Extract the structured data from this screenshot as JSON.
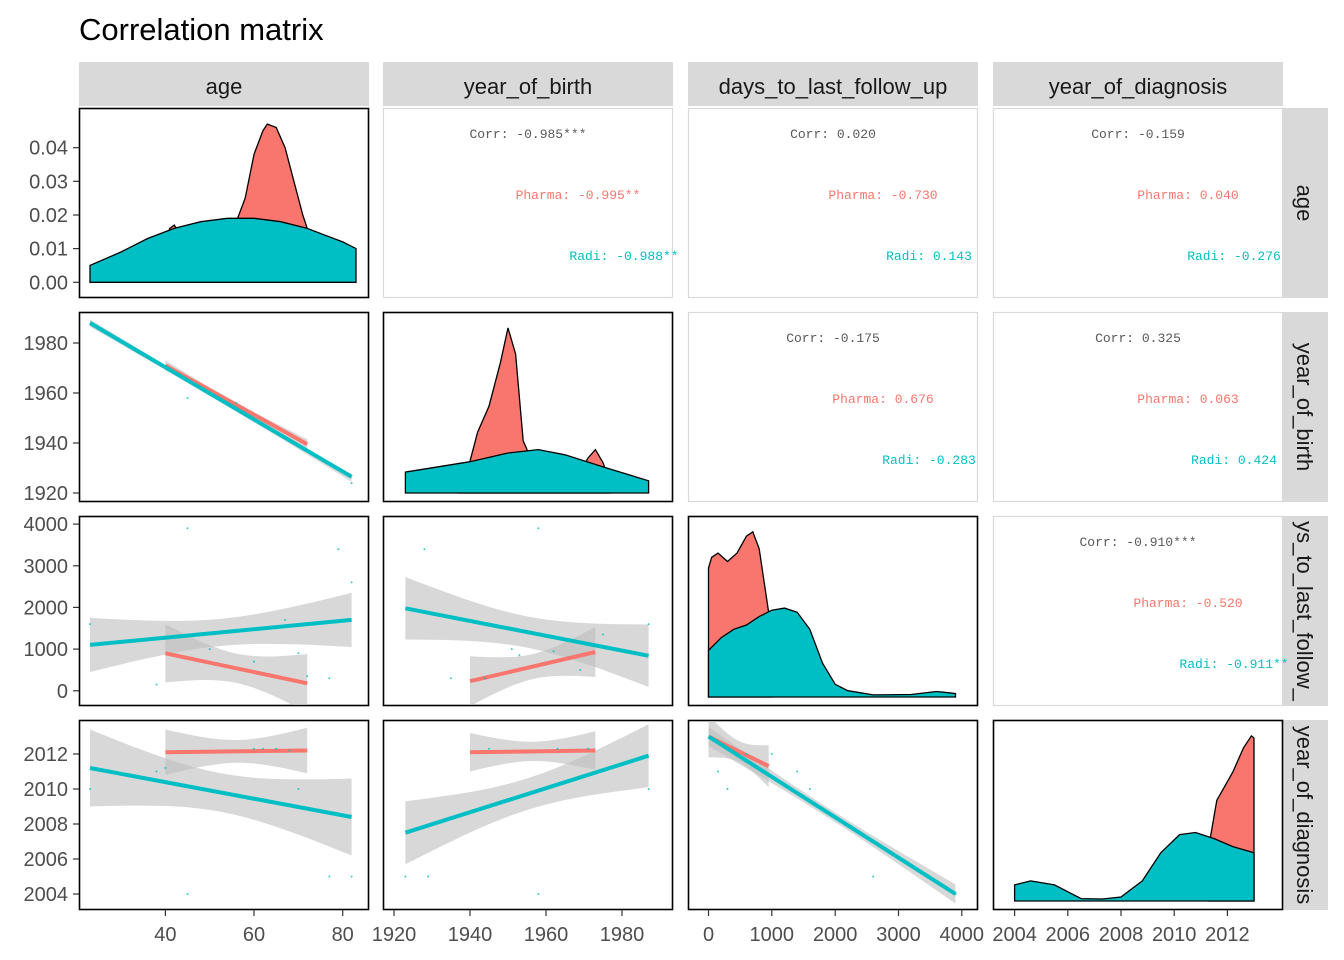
{
  "title": "Correlation matrix",
  "variables": [
    "age",
    "year_of_birth",
    "days_to_last_follow_up",
    "year_of_diagnosis"
  ],
  "strip_labels": {
    "columns": [
      "age",
      "year_of_birth",
      "days_to_last_follow_up",
      "year_of_diagnosis"
    ],
    "rows": [
      "age",
      "year_of_birth",
      "ys_to_last_follow_",
      "year_of_diagnosis"
    ]
  },
  "colors": {
    "Pharma": "#F8766D",
    "Radi": "#00BFC4",
    "overall": "#595959",
    "ci_band": "#BEBEBE",
    "strip": "#D9D9D9"
  },
  "chart_data": {
    "type": "scatter",
    "title": "Correlation matrix",
    "groups": [
      "Pharma",
      "Radi"
    ],
    "axes": {
      "age": {
        "range": [
          23,
          83
        ],
        "ticks": [
          "40",
          "60",
          "80"
        ]
      },
      "year_of_birth": {
        "range": [
          1920,
          1990
        ],
        "ticks": [
          "1920",
          "1940",
          "1960",
          "1980"
        ]
      },
      "days_to_last_follow_up": {
        "range": [
          -150,
          4050
        ],
        "ticks": [
          "0",
          "1000",
          "2000",
          "3000",
          "4000"
        ]
      },
      "year_of_diagnosis": {
        "range": [
          2003.6,
          2013.6
        ],
        "ticks": [
          "2004",
          "2006",
          "2008",
          "2010",
          "2012"
        ]
      },
      "density_age": {
        "range": [
          -0.002,
          0.05
        ],
        "ticks": [
          "0.00",
          "0.01",
          "0.02",
          "0.03",
          "0.04"
        ]
      }
    },
    "correlations": [
      {
        "row": "age",
        "col": "year_of_birth",
        "lines": [
          "Corr: -0.985***",
          "Pharma: -0.995**",
          "Radi: -0.988**"
        ]
      },
      {
        "row": "age",
        "col": "days_to_last_follow_up",
        "lines": [
          "Corr: 0.020",
          "Pharma: -0.730",
          "Radi: 0.143"
        ]
      },
      {
        "row": "age",
        "col": "year_of_diagnosis",
        "lines": [
          "Corr: -0.159",
          "Pharma: 0.040",
          "Radi: -0.276"
        ]
      },
      {
        "row": "year_of_birth",
        "col": "days_to_last_follow_up",
        "lines": [
          "Corr: -0.175",
          "Pharma: 0.676",
          "Radi: -0.283"
        ]
      },
      {
        "row": "year_of_birth",
        "col": "year_of_diagnosis",
        "lines": [
          "Corr: 0.325",
          "Pharma: 0.063",
          "Radi: 0.424"
        ]
      },
      {
        "row": "days_to_last_follow_up",
        "col": "year_of_diagnosis",
        "lines": [
          "Corr: -0.910***",
          "Pharma: -0.520",
          "Radi: -0.911**"
        ]
      }
    ],
    "densities": {
      "age": {
        "Pharma": [
          [
            40,
            0
          ],
          [
            40,
            0.012
          ],
          [
            41,
            0.016
          ],
          [
            42,
            0.017
          ],
          [
            43,
            0.015
          ],
          [
            44,
            0.014
          ],
          [
            50,
            0.016
          ],
          [
            56,
            0.018
          ],
          [
            58,
            0.025
          ],
          [
            60,
            0.038
          ],
          [
            62,
            0.045
          ],
          [
            63,
            0.047
          ],
          [
            65,
            0.046
          ],
          [
            67,
            0.04
          ],
          [
            69,
            0.03
          ],
          [
            71,
            0.02
          ],
          [
            72,
            0.016
          ],
          [
            72,
            0
          ]
        ],
        "Radi": [
          [
            23,
            0.005
          ],
          [
            30,
            0.009
          ],
          [
            36,
            0.013
          ],
          [
            42,
            0.016
          ],
          [
            48,
            0.018
          ],
          [
            54,
            0.019
          ],
          [
            60,
            0.019
          ],
          [
            66,
            0.018
          ],
          [
            72,
            0.016
          ],
          [
            76,
            0.014
          ],
          [
            80,
            0.012
          ],
          [
            83,
            0.01
          ]
        ]
      },
      "year_of_birth": {
        "Pharma": [
          [
            1937,
            0.003
          ],
          [
            1939,
            0.02
          ],
          [
            1942,
            0.07
          ],
          [
            1945,
            0.1
          ],
          [
            1948,
            0.15
          ],
          [
            1950,
            0.19
          ],
          [
            1952,
            0.16
          ],
          [
            1954,
            0.06
          ],
          [
            1956,
            0.04
          ],
          [
            1960,
            0.032
          ],
          [
            1965,
            0.025
          ],
          [
            1969,
            0.023
          ],
          [
            1971,
            0.04
          ],
          [
            1973,
            0.05
          ],
          [
            1975,
            0.035
          ],
          [
            1977,
            0.01
          ]
        ],
        "Radi": [
          [
            1923,
            0.024
          ],
          [
            1930,
            0.029
          ],
          [
            1940,
            0.036
          ],
          [
            1950,
            0.046
          ],
          [
            1958,
            0.05
          ],
          [
            1965,
            0.044
          ],
          [
            1975,
            0.03
          ],
          [
            1987,
            0.014
          ]
        ]
      },
      "days_to_last_follow_up": {
        "Pharma": [
          [
            0,
            0.000305
          ],
          [
            50,
            0.00033
          ],
          [
            150,
            0.00034
          ],
          [
            300,
            0.00032
          ],
          [
            450,
            0.00034
          ],
          [
            600,
            0.00038
          ],
          [
            700,
            0.00039
          ],
          [
            800,
            0.00035
          ],
          [
            900,
            0.00025
          ],
          [
            1000,
            0.00015
          ]
        ],
        "Radi": [
          [
            0,
            0.00011
          ],
          [
            200,
            0.00014
          ],
          [
            400,
            0.00016
          ],
          [
            600,
            0.00017
          ],
          [
            800,
            0.00019
          ],
          [
            1000,
            0.000205
          ],
          [
            1200,
            0.00021
          ],
          [
            1400,
            0.0002
          ],
          [
            1600,
            0.00016
          ],
          [
            1800,
            8e-05
          ],
          [
            2000,
            3e-05
          ],
          [
            2200,
            1.5e-05
          ],
          [
            2600,
            5e-06
          ],
          [
            3200,
            6e-06
          ],
          [
            3600,
            1.3e-05
          ],
          [
            3800,
            1e-05
          ],
          [
            3900,
            8e-06
          ]
        ]
      },
      "year_of_diagnosis": {
        "Pharma": [
          [
            2011.3,
            0.135
          ],
          [
            2011.6,
            0.25
          ],
          [
            2012.2,
            0.32
          ],
          [
            2012.6,
            0.38
          ],
          [
            2012.9,
            0.41
          ],
          [
            2013,
            0.405
          ]
        ],
        "Radi": [
          [
            2004,
            0.04
          ],
          [
            2004.6,
            0.05
          ],
          [
            2005.5,
            0.04
          ],
          [
            2006.5,
            0.006
          ],
          [
            2007.3,
            0.005
          ],
          [
            2008,
            0.01
          ],
          [
            2008.8,
            0.05
          ],
          [
            2009.5,
            0.12
          ],
          [
            2010.2,
            0.165
          ],
          [
            2010.8,
            0.17
          ],
          [
            2011.5,
            0.155
          ],
          [
            2012.2,
            0.135
          ],
          [
            2013,
            0.12
          ]
        ]
      }
    },
    "regressions": [
      {
        "row": "year_of_birth",
        "col": "age",
        "group": "overall",
        "x": [
          23,
          82
        ],
        "y": [
          1988,
          1926
        ],
        "se": 1.5
      },
      {
        "row": "year_of_birth",
        "col": "age",
        "group": "Pharma",
        "x": [
          40,
          72
        ],
        "y": [
          1971,
          1939.5
        ],
        "se": 2.0
      },
      {
        "row": "year_of_birth",
        "col": "age",
        "group": "Radi",
        "x": [
          23,
          82
        ],
        "y": [
          1988,
          1926.5
        ],
        "se": 1.0
      },
      {
        "row": "days_to_last_follow_up",
        "col": "age",
        "group": "Pharma",
        "x": [
          40,
          72
        ],
        "y": [
          900,
          180
        ],
        "se": 700
      },
      {
        "row": "days_to_last_follow_up",
        "col": "age",
        "group": "Radi",
        "x": [
          23,
          82
        ],
        "y": [
          1100,
          1700
        ],
        "se": 650
      },
      {
        "row": "days_to_last_follow_up",
        "col": "year_of_birth",
        "group": "Pharma",
        "x": [
          1940,
          1973
        ],
        "y": [
          230,
          930
        ],
        "se": 600
      },
      {
        "row": "days_to_last_follow_up",
        "col": "year_of_birth",
        "group": "Radi",
        "x": [
          1923,
          1987
        ],
        "y": [
          1980,
          840
        ],
        "se": 750
      },
      {
        "row": "year_of_diagnosis",
        "col": "age",
        "group": "Pharma",
        "x": [
          40,
          72
        ],
        "y": [
          2012.1,
          2012.2
        ],
        "se": 1.3
      },
      {
        "row": "year_of_diagnosis",
        "col": "age",
        "group": "Radi",
        "x": [
          23,
          82
        ],
        "y": [
          2011.2,
          2008.4
        ],
        "se": 2.2
      },
      {
        "row": "year_of_diagnosis",
        "col": "year_of_birth",
        "group": "Pharma",
        "x": [
          1940,
          1973
        ],
        "y": [
          2012.1,
          2012.2
        ],
        "se": 1.1
      },
      {
        "row": "year_of_diagnosis",
        "col": "year_of_birth",
        "group": "Radi",
        "x": [
          1923,
          1987
        ],
        "y": [
          2007.5,
          2011.9
        ],
        "se": 1.8
      },
      {
        "row": "year_of_diagnosis",
        "col": "days_to_last_follow_up",
        "group": "Pharma",
        "x": [
          0,
          950
        ],
        "y": [
          2013,
          2011.3
        ],
        "se": 1.2
      },
      {
        "row": "year_of_diagnosis",
        "col": "days_to_last_follow_up",
        "group": "Radi",
        "x": [
          0,
          3900
        ],
        "y": [
          2013,
          2004
        ],
        "se": 0.55
      }
    ],
    "points": [
      {
        "row": "year_of_birth",
        "col": "age",
        "group": "Radi",
        "x": [
          45,
          56,
          82
        ],
        "y": [
          1958,
          1956,
          1924
        ]
      },
      {
        "row": "days_to_last_follow_up",
        "col": "age",
        "group": "Radi",
        "x": [
          23,
          45,
          38,
          65,
          67,
          70,
          72,
          77,
          79,
          82,
          60,
          50
        ],
        "y": [
          1600,
          3900,
          150,
          1500,
          1700,
          900,
          350,
          300,
          3400,
          2600,
          700,
          1000
        ]
      },
      {
        "row": "days_to_last_follow_up",
        "col": "year_of_birth",
        "group": "Radi",
        "x": [
          1928,
          1958,
          1944,
          1951,
          1953,
          1962,
          1969,
          1975,
          1987,
          1935
        ],
        "y": [
          3400,
          3900,
          300,
          1000,
          850,
          950,
          500,
          1350,
          1600,
          300
        ]
      },
      {
        "row": "year_of_diagnosis",
        "col": "age",
        "group": "Radi",
        "x": [
          23,
          38,
          40,
          45,
          60,
          62,
          65,
          68,
          70,
          77,
          82
        ],
        "y": [
          2010,
          2011,
          2011.2,
          2004,
          2012.3,
          2012.3,
          2012.3,
          2012.2,
          2010,
          2005,
          2005
        ]
      },
      {
        "row": "year_of_diagnosis",
        "col": "year_of_birth",
        "group": "Radi",
        "x": [
          1923,
          1929,
          1945,
          1958,
          1963,
          1971,
          1987
        ],
        "y": [
          2005,
          2005,
          2012.3,
          2004,
          2012.3,
          2012.3,
          2010
        ]
      },
      {
        "row": "year_of_diagnosis",
        "col": "days_to_last_follow_up",
        "group": "Radi",
        "x": [
          150,
          300,
          600,
          1000,
          1400,
          1600,
          2600,
          3900
        ],
        "y": [
          2011,
          2010,
          2012,
          2012,
          2011,
          2010,
          2005,
          2004
        ]
      }
    ]
  }
}
